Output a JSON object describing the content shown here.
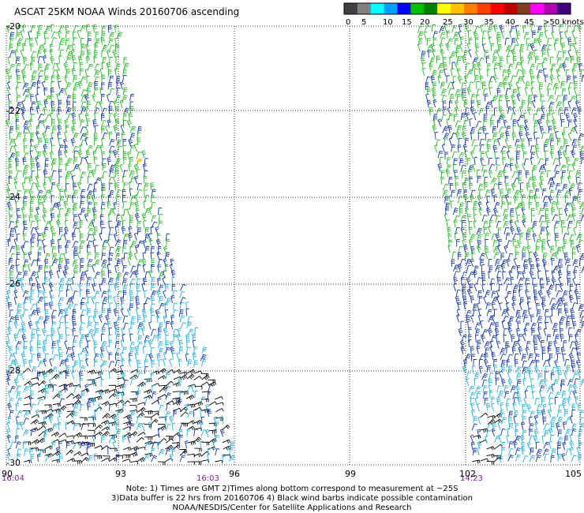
{
  "title": "ASCAT 25KM NOAA Winds 20160706 ascending",
  "legend": {
    "labels": [
      "0",
      "5",
      "10",
      "15",
      "20",
      "25",
      "30",
      "35",
      "40",
      "45",
      ">50 knots"
    ],
    "colors": [
      "#404040",
      "#808080",
      "#00ffff",
      "#00a0ff",
      "#0000ff",
      "#00c000",
      "#008000",
      "#ffff00",
      "#ffc000",
      "#ff8000",
      "#ff4000",
      "#ff0000",
      "#c00000",
      "#804020",
      "#ff00ff",
      "#b000b0",
      "#400080"
    ]
  },
  "axes": {
    "lat_labels": [
      "-20",
      "-22",
      "-24",
      "-26",
      "-28",
      "-30"
    ],
    "lon_labels": [
      "90",
      "93",
      "96",
      "99",
      "102",
      "105"
    ]
  },
  "times": [
    "16:04",
    "16:03",
    "14:23"
  ],
  "notes": [
    "Note: 1) Times are GMT 2)Times along bottom correspond to measurement at ~25S",
    "3)Data buffer is 22 hrs from 20160706 4) Black wind barbs indicate possible contamination",
    "NOAA/NESDIS/Center for Satellite Applications and Research"
  ],
  "swaths": [
    {
      "name": "west-swath",
      "lon_range": [
        90,
        96
      ],
      "colors_by_lat": {
        "north": "#22bb22",
        "middle": "#1133aa",
        "south": "#22b0e0",
        "edge": "#000000"
      }
    },
    {
      "name": "east-swath",
      "lon_range": [
        101,
        105
      ],
      "colors_by_lat": {
        "north": "#22bb22",
        "middle": "#1133aa",
        "south": "#22b0e0",
        "edge": "#000000"
      }
    }
  ]
}
